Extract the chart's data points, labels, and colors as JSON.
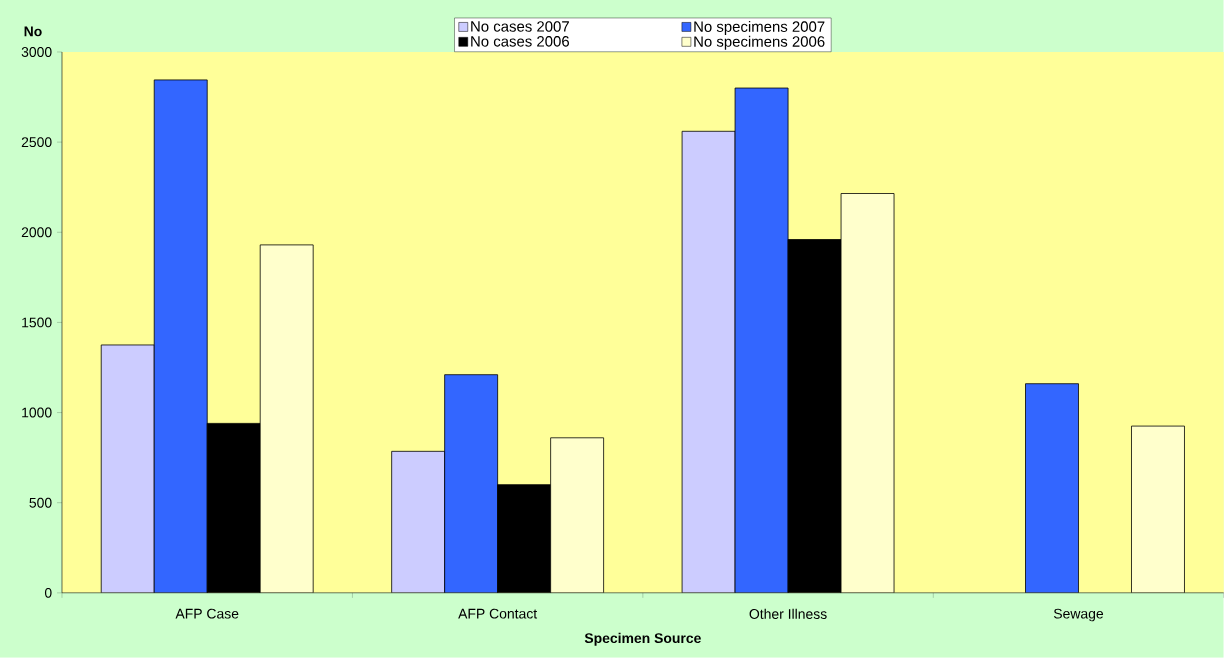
{
  "chart_data": {
    "type": "bar",
    "xlabel": "Specimen Source",
    "ylabel": "No",
    "categories": [
      "AFP Case",
      "AFP Contact",
      "Other Illness",
      "Sewage"
    ],
    "series": [
      {
        "name": "No cases 2007",
        "color": "#ccccff",
        "values": [
          1375,
          785,
          2560,
          null
        ]
      },
      {
        "name": "No specimens 2007",
        "color": "#3366ff",
        "values": [
          2845,
          1210,
          2800,
          1160
        ]
      },
      {
        "name": "No cases 2006",
        "color": "#000000",
        "values": [
          940,
          600,
          1960,
          null
        ]
      },
      {
        "name": "No specimens 2006",
        "color": "#ffffcc",
        "values": [
          1930,
          860,
          2215,
          925
        ]
      }
    ],
    "ylim": [
      0,
      3000
    ],
    "yticks": [
      0,
      500,
      1000,
      1500,
      2000,
      2500,
      3000
    ],
    "legend": "top"
  }
}
